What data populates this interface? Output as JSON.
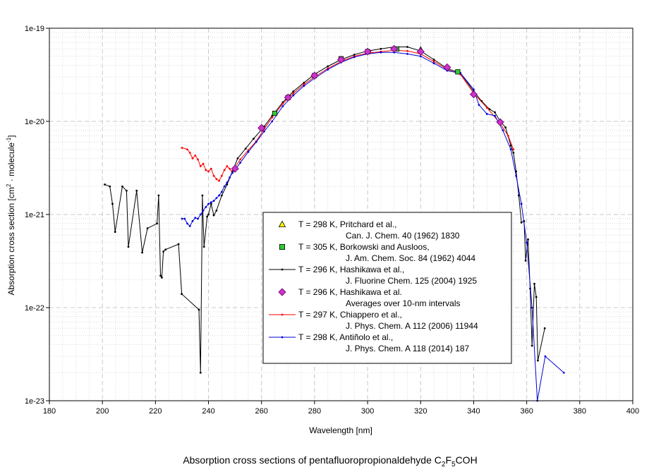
{
  "chart_data": {
    "type": "line",
    "title": "Absorption cross sections of pentafluoropropionaldehyde C2F5COH",
    "title_parts": {
      "prefix": "Absorption cross sections of pentafluoropropionaldehyde C",
      "sub1": "2",
      "mid": "F",
      "sub2": "5",
      "suffix": "COH"
    },
    "xlabel": "Wavelength [nm]",
    "ylabel_parts": {
      "prefix": "Absorption cross section [cm",
      "sup1": "2",
      "mid": " · molecule",
      "sup2": "-1",
      "suffix": "]"
    },
    "xlim": [
      180,
      400
    ],
    "ylim": [
      1e-23,
      1e-19
    ],
    "yscale": "log",
    "grid": true,
    "x_ticks": [
      "180",
      "200",
      "220",
      "240",
      "260",
      "280",
      "300",
      "320",
      "340",
      "360",
      "380",
      "400"
    ],
    "y_ticks": [
      "1e-23",
      "1e-22",
      "1e-21",
      "1e-20",
      "1e-19"
    ],
    "legend_position": "center-bottom",
    "series": [
      {
        "name": "Pritchard",
        "marker": "triangle",
        "color": "#ffff00",
        "edge": "#000000",
        "line": false,
        "legend": [
          "T = 298 K, Pritchard et al.,",
          "Can. J. Chem. 40 (1962) 1830"
        ],
        "x": [
          320
        ],
        "y": [
          5.9e-20
        ]
      },
      {
        "name": "Borkowski",
        "marker": "square",
        "color": "#33cc33",
        "edge": "#000000",
        "line": false,
        "legend": [
          "T = 305 K, Borkowski and Ausloos,",
          "J. Am. Chem. Soc. 84 (1962) 4044"
        ],
        "x": [
          265,
          270,
          280,
          290,
          300,
          311,
          334
        ],
        "y": [
          1.22e-20,
          1.8e-20,
          3.1e-20,
          4.7e-20,
          5.6e-20,
          6e-20,
          3.4e-20
        ]
      },
      {
        "name": "Hashikawa",
        "marker": "dot",
        "color": "#000000",
        "edge": "#000000",
        "line": true,
        "legend": [
          "T = 296 K, Hashikawa et al.,",
          "J. Fluorine Chem. 125 (2004) 1925"
        ],
        "x": [
          200.9,
          202.8,
          203.8,
          204.8,
          207.5,
          209.1,
          209.8,
          212.9,
          215,
          217,
          220.6,
          221.2,
          221.9,
          222.4,
          223,
          223.8,
          228.7,
          229.9,
          236.4,
          237,
          237.7,
          238.3,
          239.5,
          240,
          241,
          242,
          243,
          245,
          247,
          249,
          251,
          254,
          257,
          261,
          264,
          268,
          272,
          276,
          280,
          285,
          290,
          295,
          300,
          305,
          310,
          315,
          320,
          325,
          330,
          335,
          340,
          343,
          346,
          348,
          350,
          352,
          354,
          355,
          356,
          357,
          358,
          359,
          359.6,
          360.5,
          361.3,
          362,
          362.9,
          363.6,
          364.2,
          366.8
        ],
        "y": [
          2.1e-21,
          2e-21,
          1.3e-21,
          6.5e-22,
          2e-21,
          1.8e-21,
          4.5e-22,
          1.8e-21,
          3.9e-22,
          7.1e-22,
          8e-22,
          1.6e-21,
          2.2e-22,
          2.1e-22,
          4e-22,
          4.2e-22,
          4.8e-22,
          1.4e-22,
          9.5e-23,
          2e-23,
          1.6e-21,
          4.5e-22,
          9.5e-22,
          1e-21,
          1.3e-21,
          9.8e-22,
          1.1e-21,
          1.6e-21,
          2.1e-21,
          2.9e-21,
          4e-21,
          5.1e-21,
          6.5e-21,
          8.8e-21,
          1.15e-20,
          1.6e-20,
          2.1e-20,
          2.6e-20,
          3.2e-20,
          3.9e-20,
          4.6e-20,
          5.2e-20,
          5.7e-20,
          6e-20,
          6.3e-20,
          6.3e-20,
          5.7e-20,
          4.6e-20,
          3.7e-20,
          3.3e-20,
          2.1e-20,
          1.65e-20,
          1.35e-20,
          1.25e-20,
          1e-20,
          8.6e-21,
          5.5e-21,
          4.6e-21,
          2.9e-21,
          1.6e-21,
          8.2e-22,
          8.5e-22,
          3.2e-22,
          5.4e-22,
          1.6e-22,
          3.9e-23,
          1.8e-22,
          1.3e-22,
          2.7e-23,
          6e-23
        ]
      },
      {
        "name": "Hashikawa averages",
        "marker": "diamond",
        "color": "#cc33cc",
        "edge": "#660066",
        "line": false,
        "legend": [
          "T = 296 K, Hashikawa et al.",
          "Averages over 10-nm intervals"
        ],
        "x": [
          250,
          260,
          270,
          280,
          290,
          300,
          310,
          320,
          330,
          340,
          350
        ],
        "y": [
          3.1e-21,
          8.5e-21,
          1.8e-20,
          3.1e-20,
          4.6e-20,
          5.6e-20,
          6e-20,
          5.6e-20,
          3.8e-20,
          1.95e-20,
          9.8e-21
        ]
      },
      {
        "name": "Chiappero",
        "marker": "dot",
        "color": "#ff0000",
        "edge": "#ff0000",
        "line": true,
        "legend": [
          "T = 297 K, Chiappero et al.,",
          "J. Phys. Chem. A 112 (2006) 11944"
        ],
        "x": [
          230,
          232,
          233,
          234,
          235,
          236,
          237,
          238,
          239,
          240,
          241,
          242,
          243,
          244,
          245,
          246,
          247,
          248,
          249,
          250,
          252,
          255,
          258,
          261,
          264,
          268,
          272,
          276,
          280,
          285,
          290,
          295,
          300,
          305,
          310,
          315,
          320,
          325,
          330,
          335,
          340,
          345,
          350,
          353,
          355
        ],
        "y": [
          5.2e-21,
          5e-21,
          4.6e-21,
          4e-21,
          4.3e-21,
          3.9e-21,
          3.3e-21,
          3.5e-21,
          3e-21,
          2.9e-21,
          3.1e-21,
          2.6e-21,
          2.4e-21,
          2.3e-21,
          2.6e-21,
          3e-21,
          3.3e-21,
          3.1e-21,
          2.8e-21,
          3.2e-21,
          3.9e-21,
          4.9e-21,
          6.1e-21,
          8.3e-21,
          1.1e-20,
          1.55e-20,
          2e-20,
          2.5e-20,
          3e-20,
          3.7e-20,
          4.4e-20,
          5e-20,
          5.4e-20,
          5.6e-20,
          5.8e-20,
          5.7e-20,
          5.3e-20,
          4.4e-20,
          3.6e-20,
          3.2e-20,
          2e-20,
          1.4e-20,
          9.5e-21,
          7e-21,
          5e-21
        ]
      },
      {
        "name": "Antinolo",
        "marker": "dot",
        "color": "#0000dd",
        "edge": "#0000dd",
        "line": true,
        "legend": [
          "T = 298 K, Antiñolo et al.,",
          "J. Phys. Chem. A 118 (2014) 187"
        ],
        "x": [
          230,
          231,
          232,
          233,
          234,
          235,
          236,
          237,
          238,
          239,
          240,
          241,
          242,
          243,
          244,
          245,
          246,
          247,
          248,
          249,
          250,
          252,
          255,
          258,
          261,
          264,
          268,
          272,
          276,
          280,
          285,
          290,
          295,
          300,
          305,
          310,
          315,
          320,
          325,
          330,
          335,
          340,
          342,
          345,
          348,
          351,
          354,
          356,
          358,
          360,
          362,
          364,
          367,
          374
        ],
        "y": [
          9e-22,
          9e-22,
          8e-22,
          7.5e-22,
          8.5e-22,
          9.2e-22,
          9e-22,
          1e-21,
          1.1e-21,
          1.2e-21,
          1.3e-21,
          1.35e-21,
          1.4e-21,
          1.5e-21,
          1.6e-21,
          1.75e-21,
          2e-21,
          2.2e-21,
          2.5e-21,
          2.8e-21,
          3e-21,
          3.6e-21,
          4.7e-21,
          6e-21,
          7.8e-21,
          1e-20,
          1.45e-20,
          1.9e-20,
          2.4e-20,
          2.9e-20,
          3.6e-20,
          4.3e-20,
          4.9e-20,
          5.3e-20,
          5.5e-20,
          5.5e-20,
          5.3e-20,
          5e-20,
          4.2e-20,
          3.5e-20,
          3.3e-20,
          2.2e-20,
          1.5e-20,
          1.2e-20,
          1.15e-20,
          8e-21,
          5e-21,
          2.6e-21,
          1.3e-21,
          5e-22,
          1e-22,
          1e-23,
          3e-23,
          2e-23
        ]
      }
    ]
  }
}
